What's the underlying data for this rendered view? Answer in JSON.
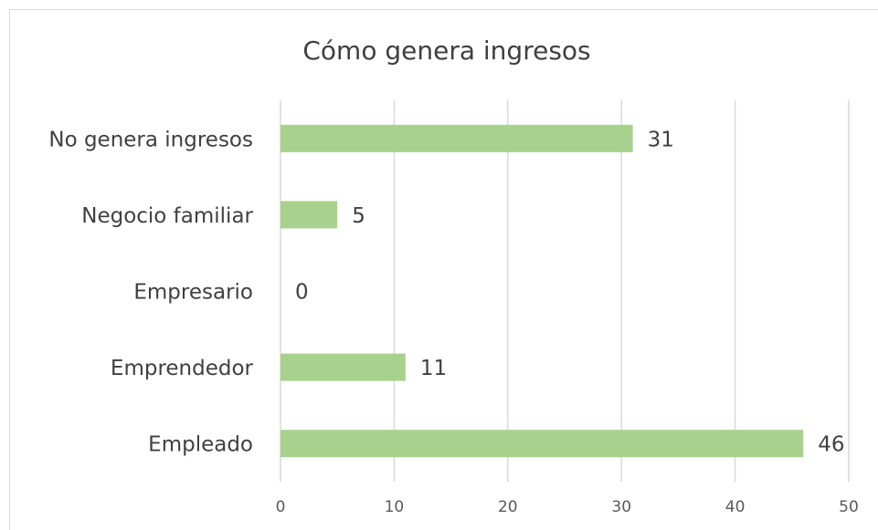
{
  "chart_data": {
    "type": "bar",
    "orientation": "horizontal",
    "title": "Cómo genera ingresos",
    "categories": [
      "No genera ingresos",
      "Negocio familiar",
      "Empresario",
      "Emprendedor",
      "Empleado"
    ],
    "values": [
      31,
      5,
      0,
      11,
      46
    ],
    "color": "#a9d18e",
    "xlim": [
      0,
      50
    ],
    "xticks": [
      0,
      10,
      20,
      30,
      40,
      50
    ],
    "grid": true
  }
}
